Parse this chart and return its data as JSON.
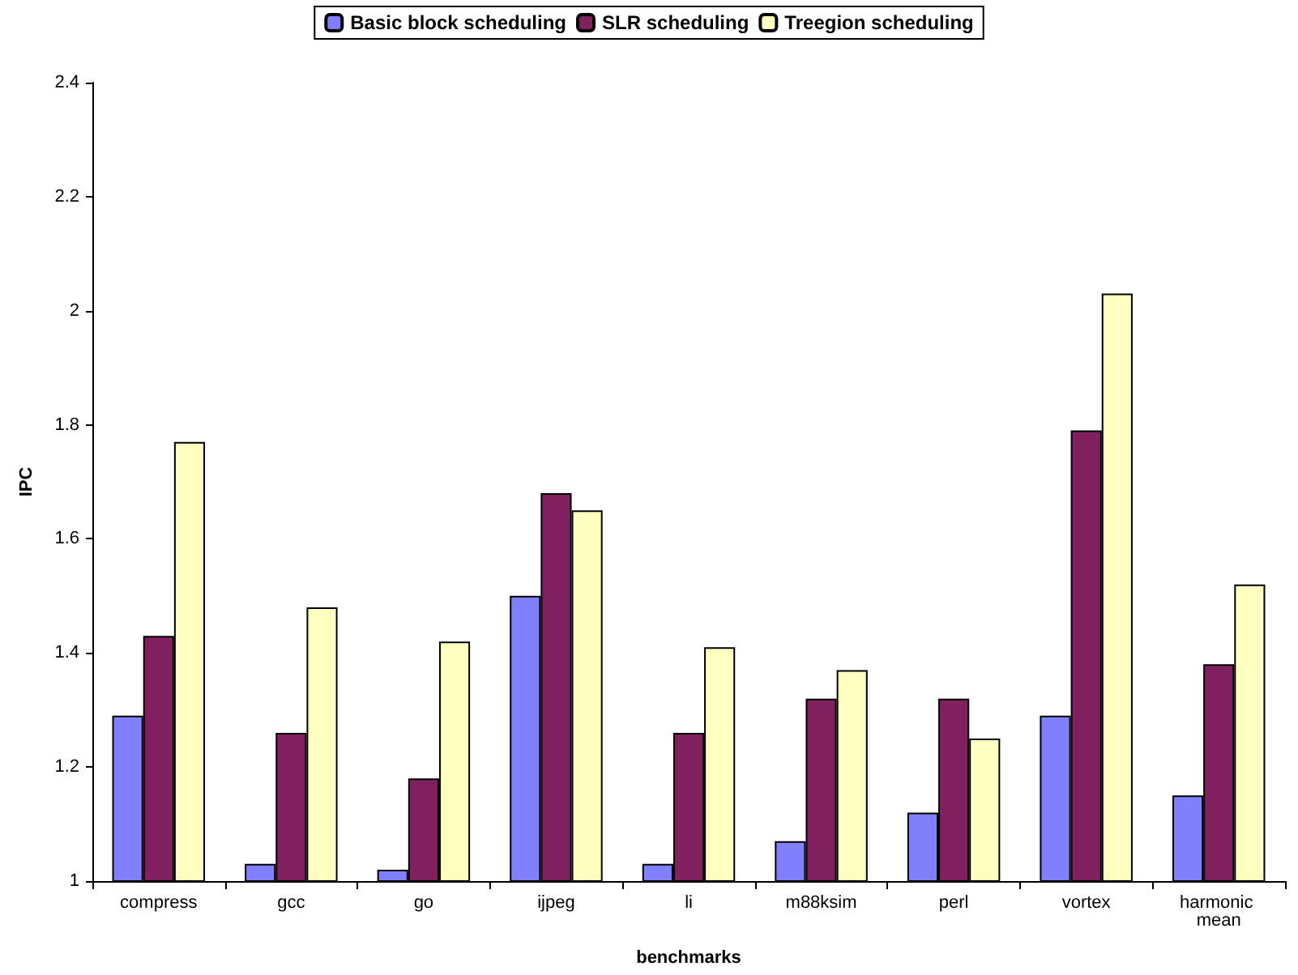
{
  "chart_data": {
    "type": "bar",
    "xlabel": "benchmarks",
    "ylabel": "IPC",
    "categories": [
      "compress",
      "gcc",
      "go",
      "ijpeg",
      "li",
      "m88ksim",
      "perl",
      "vortex",
      "harmonic mean"
    ],
    "series": [
      {
        "name": "Basic block scheduling",
        "color": "#8080ff",
        "values": [
          1.29,
          1.03,
          1.02,
          1.5,
          1.03,
          1.07,
          1.12,
          1.29,
          1.15
        ]
      },
      {
        "name": "SLR scheduling",
        "color": "#80205f",
        "values": [
          1.43,
          1.26,
          1.18,
          1.68,
          1.26,
          1.32,
          1.32,
          1.79,
          1.38
        ]
      },
      {
        "name": "Treegion scheduling",
        "color": "#ffffc0",
        "values": [
          1.77,
          1.48,
          1.42,
          1.65,
          1.41,
          1.37,
          1.25,
          2.03,
          1.52
        ]
      }
    ],
    "ylim": [
      1,
      2.4
    ],
    "yticks": [
      1,
      1.2,
      1.4,
      1.6,
      1.8,
      2,
      2.2,
      2.4
    ],
    "grid": false,
    "legend": "top"
  }
}
